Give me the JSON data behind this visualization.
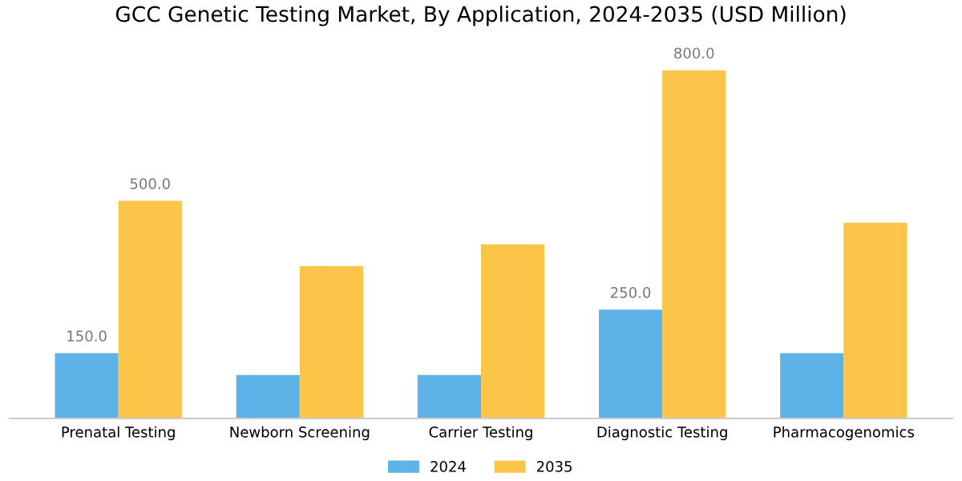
{
  "chart_data": {
    "type": "bar",
    "title": "GCC Genetic Testing Market, By Application, 2024-2035 (USD Million)",
    "categories": [
      "Prenatal Testing",
      "Newborn Screening",
      "Carrier Testing",
      "Diagnostic Testing",
      "Pharmacogenomics"
    ],
    "series": [
      {
        "name": "2024",
        "color": "#5db3e8",
        "values": [
          150,
          100,
          100,
          250,
          150
        ],
        "value_labels": [
          "150.0",
          null,
          null,
          "250.0",
          null
        ]
      },
      {
        "name": "2035",
        "color": "#fbc54a",
        "values": [
          500,
          350,
          400,
          800,
          450
        ],
        "value_labels": [
          "500.0",
          null,
          null,
          "800.0",
          null
        ]
      }
    ],
    "grid": false,
    "legend": "bottom",
    "tick_labels": "x"
  }
}
